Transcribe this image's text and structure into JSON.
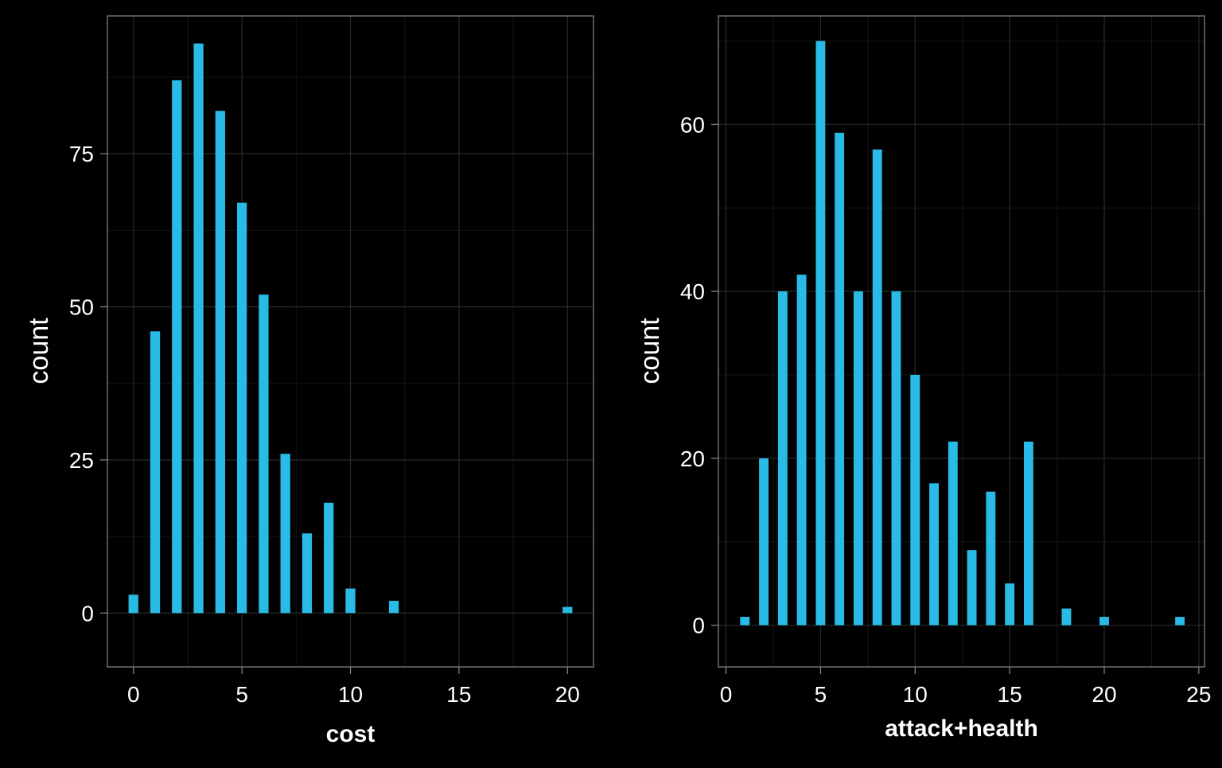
{
  "colors": {
    "background": "#000000",
    "bar": "#29BBE6",
    "panel_border": "#8a8a8a",
    "grid_major": "#2a2a2a",
    "grid_minor": "#151515",
    "text": "#ffffff"
  },
  "chart_data": [
    {
      "type": "bar",
      "xlabel": "cost",
      "ylabel": "count",
      "xlim": [
        -1.2,
        21.2
      ],
      "ylim": [
        -8.8,
        97.5
      ],
      "xticks": [
        0,
        5,
        10,
        15,
        20
      ],
      "yticks": [
        0,
        25,
        50,
        75
      ],
      "grid": true,
      "bar_width": 0.45,
      "x": [
        0,
        1,
        2,
        3,
        4,
        5,
        6,
        7,
        8,
        9,
        10,
        12,
        20
      ],
      "values": [
        3,
        46,
        87,
        93,
        82,
        67,
        52,
        26,
        13,
        18,
        4,
        2,
        1
      ]
    },
    {
      "type": "bar",
      "xlabel": "attack+health",
      "ylabel": "count",
      "xlim": [
        -0.4,
        25.3
      ],
      "ylim": [
        -5,
        73
      ],
      "xticks": [
        0,
        5,
        10,
        15,
        20,
        25
      ],
      "yticks": [
        0,
        20,
        40,
        60
      ],
      "grid": true,
      "bar_width": 0.5,
      "x": [
        1,
        2,
        3,
        4,
        5,
        6,
        7,
        8,
        9,
        10,
        11,
        12,
        13,
        14,
        15,
        16,
        18,
        20,
        24
      ],
      "values": [
        1,
        20,
        40,
        42,
        70,
        59,
        40,
        57,
        40,
        30,
        17,
        22,
        9,
        16,
        5,
        22,
        2,
        1,
        1
      ]
    }
  ]
}
